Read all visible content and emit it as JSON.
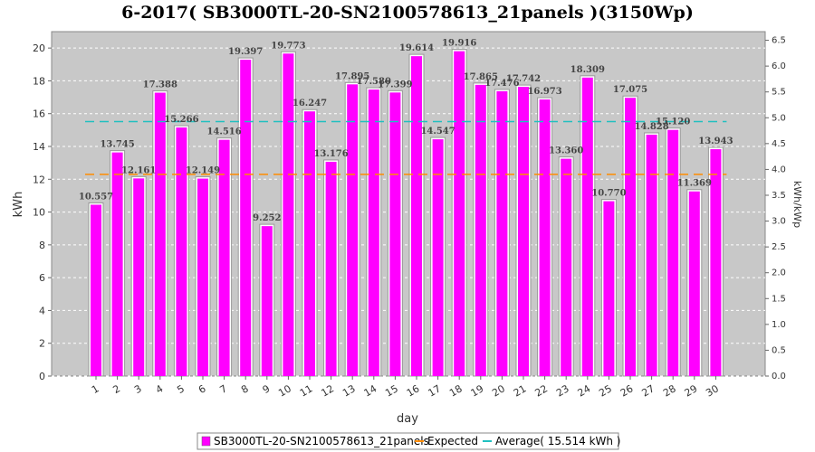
{
  "chart_data": {
    "type": "bar",
    "title": "6-2017( SB3000TL-20-SN2100578613_21panels )(3150Wp)",
    "xlabel": "day",
    "ylabel": "kWh",
    "ylabel_right": "kWh/kWp",
    "ylim": [
      0,
      21
    ],
    "ylim_right": [
      0,
      6.667
    ],
    "yticks": [
      "0",
      "2",
      "4",
      "6",
      "8",
      "10",
      "12",
      "14",
      "16",
      "18",
      "20"
    ],
    "yticks_right": [
      "0.0",
      "0.5",
      "1.0",
      "1.5",
      "2.0",
      "2.5",
      "3.0",
      "3.5",
      "4.0",
      "4.5",
      "5.0",
      "5.5",
      "6.0",
      "6.5"
    ],
    "categories": [
      "1",
      "2",
      "3",
      "4",
      "5",
      "6",
      "7",
      "8",
      "9",
      "10",
      "11",
      "12",
      "13",
      "14",
      "15",
      "16",
      "17",
      "18",
      "19",
      "20",
      "21",
      "22",
      "23",
      "24",
      "25",
      "26",
      "27",
      "28",
      "29",
      "30"
    ],
    "series": [
      {
        "name": "SB3000TL-20-SN2100578613_21panels",
        "color": "#ff00ff",
        "values": [
          10.557,
          13.745,
          12.161,
          17.388,
          15.266,
          12.149,
          14.516,
          19.397,
          9.252,
          19.773,
          16.247,
          13.176,
          17.895,
          17.58,
          17.399,
          19.614,
          14.547,
          19.916,
          17.865,
          17.476,
          17.742,
          16.973,
          13.36,
          18.309,
          10.77,
          17.075,
          14.828,
          15.12,
          11.369,
          13.943
        ],
        "labels": [
          "10.557",
          "13.745",
          "12.161",
          "17.388",
          "15.266",
          "12.149",
          "14.516",
          "19.397",
          "9.252",
          "19.773",
          "16.247",
          "13.176",
          "17.895",
          "17.580",
          "17.399",
          "19.614",
          "14.547",
          "19.916",
          "17.865",
          "17.476",
          "17.742",
          "16.973",
          "13.360",
          "18.309",
          "10.770",
          "17.075",
          "14.828",
          "15.120",
          "11.369",
          "13.943"
        ]
      }
    ],
    "lines": [
      {
        "name": "Expected",
        "value": 12.3,
        "color": "#ff8c00"
      },
      {
        "name": "Average( 15.514 kWh )",
        "value": 15.514,
        "color": "#20c0c0"
      }
    ],
    "legend": {
      "placement": "bottom",
      "items": [
        {
          "label": "SB3000TL-20-SN2100578613_21panels",
          "color": "#ff00ff",
          "kind": "box"
        },
        {
          "label": "Expected",
          "color": "#ff8c00",
          "kind": "line"
        },
        {
          "label": "Average( 15.514 kWh )",
          "color": "#20c0c0",
          "kind": "line"
        }
      ]
    },
    "grid": true,
    "plot_background": "#c8c8c8"
  }
}
